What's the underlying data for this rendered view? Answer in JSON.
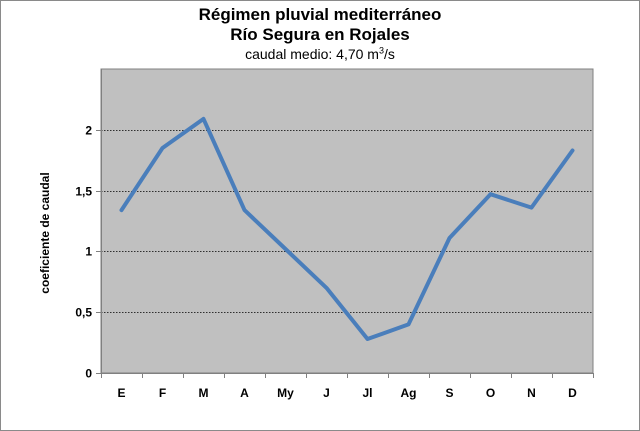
{
  "chart_data": {
    "type": "line",
    "title": "Régimen pluvial mediterráneo",
    "title_line2": "Río Segura en Rojales",
    "subtitle_prefix": "caudal medio:  4,70 m",
    "subtitle_sup": "3",
    "subtitle_suffix": "/s",
    "xlabel": "",
    "ylabel": "coeficiente de caudal",
    "categories": [
      "E",
      "F",
      "M",
      "A",
      "My",
      "J",
      "Jl",
      "Ag",
      "S",
      "O",
      "N",
      "D"
    ],
    "series": [
      {
        "values": [
          1.34,
          1.85,
          2.09,
          1.34,
          1.02,
          0.7,
          0.28,
          0.4,
          1.11,
          1.47,
          1.36,
          1.83
        ],
        "color": "#4a7ebb"
      }
    ],
    "ylim": [
      0,
      2.5
    ],
    "yticks": [
      0,
      0.5,
      1,
      1.5,
      2
    ],
    "ytick_labels": [
      "0",
      "0,5",
      "1",
      "1,5",
      "2"
    ],
    "grid": true,
    "legend": "none",
    "plot_background": "#c0c0c0"
  }
}
